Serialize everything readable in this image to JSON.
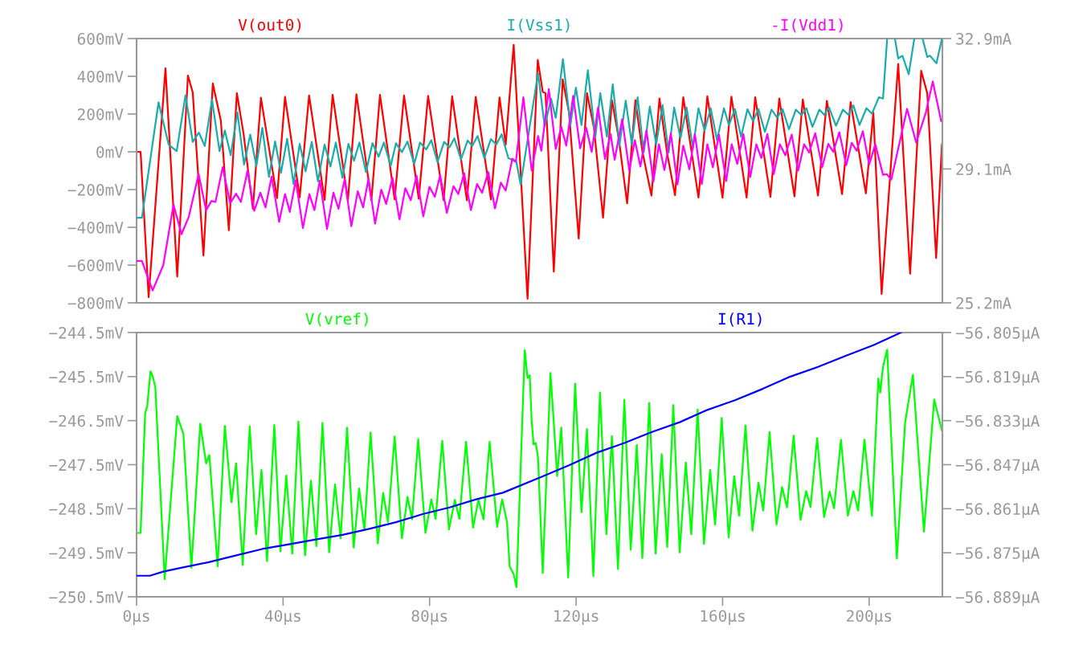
{
  "chart_data": [
    {
      "type": "line",
      "legend": "top",
      "tick_labels": "y",
      "xlim": [
        0,
        220
      ],
      "ylim": [
        -800,
        600
      ],
      "yticks": [
        {
          "value": 600,
          "label": "600mV"
        },
        {
          "value": 400,
          "label": "400mV"
        },
        {
          "value": 200,
          "label": "200mV"
        },
        {
          "value": 0,
          "label": "0mV"
        },
        {
          "value": -200,
          "label": "−200mV"
        },
        {
          "value": -400,
          "label": "−400mV"
        },
        {
          "value": -600,
          "label": "−600mV"
        },
        {
          "value": -800,
          "label": "−800mV"
        }
      ],
      "y2lim": [
        25.2,
        32.9
      ],
      "y2ticks": [
        {
          "value": 25.2,
          "label": "25.2mA"
        },
        {
          "value": 29.1,
          "label": "29.1mA"
        },
        {
          "value": 32.9,
          "label": "32.9mA"
        }
      ],
      "series": [
        {
          "name": "V(out0)",
          "color": "#ff0000",
          "x": [
            0,
            1.1,
            3.29,
            7.89,
            11.1,
            14.02,
            15.33,
            18.26,
            20.81,
            23.0,
            25.19,
            27.38,
            29.21,
            31.76,
            33.95,
            38.34,
            40.53,
            44.54,
            47.1,
            51.33,
            53.52,
            57.69,
            60.02,
            64.11,
            66.45,
            70.46,
            73.02,
            77.04,
            79.59,
            83.83,
            86.16,
            90.18,
            92.59,
            96.75,
            99.09,
            100.77,
            102.96,
            106.74,
            109.53,
            110.89,
            111.65,
            113.91,
            116.33,
            118.07,
            120.71,
            122.98,
            124.86,
            127.36,
            129.77,
            131.66,
            133.93,
            136.19,
            138.08,
            140.57,
            142.76,
            144.88,
            147.0,
            149.26,
            153.41,
            155.83,
            159.98,
            162.4,
            166.55,
            168.9,
            173.05,
            175.47,
            179.62,
            181.89,
            186.04,
            188.46,
            192.61,
            194.95,
            199.11,
            201.15,
            203.41,
            207.94,
            211.19,
            214.21,
            215.87,
            218.29,
            219.88
          ],
          "values": [
            0,
            0,
            -770,
            442,
            -660,
            404,
            315,
            -550,
            362,
            166,
            -416,
            311,
            95,
            -302,
            287,
            -245,
            291,
            -241,
            298,
            -255,
            302,
            -257,
            305,
            -257,
            302,
            -252,
            298,
            -248,
            296,
            -257,
            294,
            -257,
            291,
            -252,
            288,
            38,
            567,
            -778,
            487,
            318,
            311,
            -635,
            384,
            208,
            -459,
            311,
            128,
            -349,
            274,
            69,
            -273,
            274,
            3,
            -232,
            282,
            -12,
            -229,
            289,
            -242,
            294,
            -243,
            292,
            -242,
            289,
            -239,
            282,
            -236,
            277,
            -232,
            270,
            -224,
            263,
            -220,
            208,
            -753,
            465,
            -646,
            429,
            311,
            -562,
            40
          ]
        },
        {
          "name": "I(Vss1)",
          "color": "#1aacac",
          "axis": "y2",
          "x": [
            0,
            1.46,
            5.99,
            8.76,
            10.95,
            13.36,
            15.33,
            17.01,
            18.62,
            20.59,
            22.64,
            24.1,
            25.7,
            27.53,
            29.35,
            31.03,
            32.71,
            34.32,
            36.14,
            37.82,
            39.43,
            41.11,
            42.86,
            44.54,
            46.15,
            47.83,
            49.51,
            51.33,
            52.94,
            54.4,
            56.22,
            57.83,
            59.36,
            60.83,
            62.65,
            64.4,
            66.08,
            67.54,
            69.37,
            70.83,
            72.44,
            73.97,
            75.79,
            77.4,
            79.08,
            80.47,
            82.15,
            83.97,
            85.43,
            86.75,
            88.57,
            90.4,
            91.64,
            93.1,
            94.93,
            96.75,
            98.21,
            99.67,
            101.5,
            103.69,
            104.85,
            109.61,
            111.42,
            113.16,
            114.44,
            116.4,
            118.44,
            119.95,
            121.46,
            123.2,
            125.24,
            126.6,
            128.41,
            130.0,
            131.81,
            133.55,
            135.21,
            136.8,
            138.46,
            140.12,
            141.86,
            143.6,
            145.26,
            146.77,
            148.5,
            150.17,
            151.9,
            153.41,
            155.07,
            156.74,
            158.47,
            160.36,
            161.72,
            163.38,
            165.04,
            166.78,
            168.29,
            169.8,
            171.54,
            173.35,
            174.86,
            176.37,
            178.11,
            180.0,
            181.51,
            182.87,
            184.53,
            186.42,
            187.7,
            189.06,
            190.95,
            192.84,
            194.35,
            195.71,
            197.37,
            199.26,
            200.77,
            202.66,
            203.79,
            204.92,
            206.0,
            207.04,
            207.94,
            209.08,
            210.81,
            212.33,
            213.5,
            214.59,
            215.87,
            216.63,
            218.37,
            219.88
          ],
          "values": [
            27.68,
            27.68,
            31.04,
            29.81,
            29.62,
            31.25,
            29.89,
            30.16,
            29.77,
            31.12,
            29.62,
            30.22,
            29.5,
            30.75,
            29.23,
            30.1,
            29.19,
            30.3,
            28.87,
            29.9,
            28.99,
            29.98,
            28.66,
            29.83,
            29.03,
            29.89,
            28.74,
            29.81,
            29.17,
            29.87,
            28.84,
            29.83,
            29.34,
            29.87,
            29.01,
            29.85,
            29.46,
            29.87,
            29.19,
            29.85,
            29.59,
            29.9,
            29.25,
            29.87,
            29.67,
            29.94,
            29.3,
            29.89,
            29.73,
            29.99,
            29.38,
            29.93,
            29.77,
            30.06,
            29.42,
            29.97,
            29.81,
            30.11,
            29.42,
            29.3,
            28.65,
            31.89,
            30.34,
            31.15,
            30.59,
            32.3,
            30.38,
            31.47,
            30.38,
            31.98,
            30.02,
            31.31,
            30.04,
            31.57,
            29.78,
            31.09,
            29.82,
            31.19,
            29.58,
            30.92,
            29.82,
            30.96,
            29.58,
            30.89,
            30.0,
            30.89,
            29.71,
            30.87,
            30.22,
            30.87,
            29.94,
            30.87,
            30.38,
            30.84,
            30.04,
            30.84,
            30.5,
            30.84,
            30.18,
            30.83,
            30.6,
            30.84,
            30.26,
            30.83,
            30.67,
            30.87,
            30.33,
            30.83,
            30.68,
            30.89,
            30.36,
            30.83,
            30.68,
            30.95,
            30.38,
            30.87,
            30.71,
            31.19,
            31.15,
            32.9,
            null,
            32.9,
            32.32,
            32.4,
            31.86,
            32.9,
            null,
            32.9,
            32.36,
            32.4,
            32.18,
            32.9
          ]
        },
        {
          "name": "-I(Vdd1)",
          "color": "#ff00ff",
          "axis": "y2",
          "x": [
            0,
            1.46,
            4.38,
            7.3,
            10.08,
            12.27,
            14.24,
            16.94,
            18.99,
            20.45,
            21.54,
            23.51,
            25.56,
            27.16,
            28.48,
            30.3,
            32.13,
            33.81,
            35.2,
            36.87,
            38.92,
            40.53,
            41.84,
            43.45,
            45.42,
            47.17,
            48.56,
            50.02,
            51.99,
            53.74,
            55.13,
            56.81,
            58.63,
            60.39,
            61.85,
            63.31,
            65.13,
            66.81,
            68.13,
            69.88,
            71.78,
            73.38,
            74.85,
            76.45,
            78.28,
            79.96,
            81.42,
            82.88,
            84.7,
            86.53,
            87.84,
            89.45,
            91.27,
            92.95,
            94.34,
            96.02,
            97.85,
            99.45,
            100.77,
            102.6,
            103.56,
            105.6,
            107.87,
            109.61,
            110.51,
            112.55,
            114.44,
            115.95,
            117.31,
            119.2,
            121.09,
            122.75,
            124.26,
            126.0,
            127.88,
            129.4,
            130.53,
            132.57,
            134.53,
            136.04,
            137.55,
            139.21,
            141.1,
            142.61,
            144.12,
            145.86,
            147.67,
            149.26,
            150.92,
            152.43,
            154.32,
            155.83,
            157.34,
            159.0,
            160.97,
            162.48,
            163.99,
            165.65,
            167.54,
            169.2,
            170.56,
            172.22,
            173.96,
            175.62,
            177.13,
            178.87,
            180.6,
            182.26,
            183.62,
            185.29,
            187.18,
            188.84,
            190.2,
            191.86,
            193.75,
            195.26,
            196.61,
            198.28,
            200.01,
            201.68,
            203.79,
            204.78,
            206.06,
            210.36,
            212.85,
            215.5,
            217.38,
            219.65
          ],
          "values": [
            26.42,
            26.42,
            25.56,
            26.3,
            28.06,
            27.2,
            27.7,
            28.95,
            27.9,
            28.17,
            28.14,
            29.15,
            28.1,
            28.38,
            28.14,
            29.05,
            27.88,
            28.41,
            27.98,
            28.88,
            27.56,
            28.37,
            27.85,
            28.77,
            27.38,
            28.37,
            27.9,
            28.76,
            27.35,
            28.41,
            27.94,
            28.8,
            27.43,
            28.45,
            27.98,
            28.81,
            27.51,
            28.5,
            28.08,
            28.84,
            27.63,
            28.54,
            28.19,
            28.9,
            27.72,
            28.58,
            28.29,
            28.91,
            27.82,
            28.6,
            28.37,
            28.97,
            27.9,
            28.66,
            28.41,
            29.01,
            27.95,
            28.7,
            28.47,
            29.4,
            29.31,
            31.19,
            29.05,
            30.06,
            29.63,
            31.43,
            29.68,
            30.33,
            29.78,
            31.23,
            29.7,
            30.3,
            29.6,
            30.89,
            29.39,
            30.12,
            29.37,
            30.55,
            29.05,
            29.94,
            29.17,
            30.22,
            28.73,
            29.82,
            29.07,
            30.14,
            28.65,
            29.78,
            29.09,
            30.12,
            28.66,
            29.82,
            29.15,
            30.1,
            28.75,
            29.82,
            29.25,
            30.12,
            28.87,
            29.82,
            29.42,
            30.12,
            28.95,
            29.82,
            29.5,
            30.1,
            29.05,
            29.82,
            29.58,
            30.14,
            29.15,
            29.83,
            29.6,
            30.17,
            29.21,
            29.86,
            29.63,
            30.2,
            29.23,
            29.82,
            28.93,
            28.95,
            28.79,
            30.85,
            29.87,
            30.75,
            31.65,
            30.5
          ]
        }
      ]
    },
    {
      "type": "line",
      "legend": "top",
      "xlim": [
        0,
        220
      ],
      "xticks": [
        {
          "value": 0,
          "label": "0µs"
        },
        {
          "value": 40,
          "label": "40µs"
        },
        {
          "value": 80,
          "label": "80µs"
        },
        {
          "value": 120,
          "label": "120µs"
        },
        {
          "value": 160,
          "label": "160µs"
        },
        {
          "value": 200,
          "label": "200µs"
        }
      ],
      "ylim": [
        -250.5,
        -244.5
      ],
      "yticks": [
        {
          "value": -244.5,
          "label": "−244.5mV"
        },
        {
          "value": -245.5,
          "label": "−245.5mV"
        },
        {
          "value": -246.5,
          "label": "−246.5mV"
        },
        {
          "value": -247.5,
          "label": "−247.5mV"
        },
        {
          "value": -248.5,
          "label": "−248.5mV"
        },
        {
          "value": -249.5,
          "label": "−249.5mV"
        },
        {
          "value": -250.5,
          "label": "−250.5mV"
        }
      ],
      "y2lim": [
        -56.889,
        -56.805
      ],
      "y2ticks": [
        {
          "value": -56.805,
          "label": "−56.805µA"
        },
        {
          "value": -56.819,
          "label": "−56.819µA"
        },
        {
          "value": -56.833,
          "label": "−56.833µA"
        },
        {
          "value": -56.847,
          "label": "−56.847µA"
        },
        {
          "value": -56.861,
          "label": "−56.861µA"
        },
        {
          "value": -56.875,
          "label": "−56.875µA"
        },
        {
          "value": -56.889,
          "label": "−56.889µA"
        }
      ],
      "series": [
        {
          "name": "V(vref)",
          "color": "#00ff00",
          "x": [
            0,
            1.1,
            2.34,
            2.92,
            3.8,
            4.38,
            5.11,
            7.67,
            11.1,
            12.78,
            14.97,
            17.38,
            18.99,
            19.86,
            22.13,
            24.1,
            25.92,
            27.16,
            28.99,
            30.89,
            32.64,
            34.1,
            35.63,
            37.6,
            39.28,
            40.89,
            42.5,
            44.18,
            46.0,
            47.61,
            49.07,
            50.75,
            52.57,
            54.18,
            55.71,
            57.47,
            59.29,
            60.75,
            62.21,
            63.89,
            65.86,
            67.32,
            68.64,
            70.46,
            72.44,
            73.97,
            75.21,
            76.89,
            78.86,
            80.47,
            81.64,
            83.46,
            85.29,
            86.89,
            88.13,
            89.96,
            91.86,
            93.32,
            94.71,
            96.39,
            98.43,
            99.82,
            101.13,
            101.86,
            102.96,
            103.72,
            105.98,
            106.74,
            107.34,
            107.87,
            108.4,
            109.0,
            109.61,
            110.89,
            113.01,
            114.14,
            114.82,
            115.95,
            117.84,
            119.73,
            121.46,
            122.97,
            124.71,
            126.52,
            128.26,
            129.77,
            131.43,
            133.17,
            134.91,
            136.57,
            138.08,
            139.97,
            141.71,
            143.37,
            144.88,
            146.54,
            148.28,
            149.94,
            151.45,
            153.19,
            154.92,
            156.59,
            157.95,
            159.76,
            161.65,
            163.16,
            164.52,
            166.25,
            168.14,
            169.8,
            171.09,
            172.82,
            174.71,
            176.22,
            177.58,
            179.39,
            181.28,
            182.79,
            184.0,
            185.81,
            187.7,
            189.21,
            190.42,
            192.31,
            194.2,
            195.71,
            196.99,
            198.73,
            200.77,
            202.51,
            203.03,
            203.79,
            204.92,
            207.57,
            209.83,
            211.95,
            214.97,
            217.76,
            219.88
          ],
          "values": [
            -249.05,
            -249.05,
            -246.34,
            -246.16,
            -245.38,
            -245.49,
            -245.73,
            -250.1,
            -246.4,
            -246.8,
            -249.84,
            -246.57,
            -247.47,
            -247.28,
            -249.81,
            -246.62,
            -248.35,
            -247.47,
            -249.78,
            -246.63,
            -249.08,
            -247.62,
            -249.69,
            -246.6,
            -249.47,
            -247.75,
            -249.52,
            -246.52,
            -249.56,
            -247.86,
            -249.35,
            -246.55,
            -249.49,
            -247.95,
            -249.17,
            -246.66,
            -249.38,
            -248.04,
            -248.99,
            -246.77,
            -249.29,
            -248.14,
            -248.8,
            -246.86,
            -249.17,
            -248.23,
            -248.74,
            -246.92,
            -249.05,
            -248.29,
            -248.73,
            -246.96,
            -248.97,
            -248.3,
            -248.73,
            -246.98,
            -248.93,
            -248.3,
            -248.74,
            -246.98,
            -248.91,
            -248.29,
            -248.8,
            -249.81,
            -249.99,
            -250.28,
            -244.9,
            -245.53,
            -245.47,
            -246.51,
            -247.04,
            -247.01,
            -247.35,
            -249.96,
            -245.42,
            -246.85,
            -247.76,
            -246.66,
            -250.06,
            -245.66,
            -248.58,
            -246.69,
            -250.03,
            -245.86,
            -249.08,
            -246.85,
            -249.87,
            -246.03,
            -249.43,
            -247.05,
            -249.62,
            -246.1,
            -249.52,
            -247.26,
            -249.37,
            -246.15,
            -249.49,
            -247.45,
            -249.08,
            -246.25,
            -249.3,
            -247.62,
            -248.86,
            -246.44,
            -249.15,
            -247.76,
            -248.66,
            -246.61,
            -249.0,
            -247.91,
            -248.54,
            -246.76,
            -248.86,
            -248.01,
            -248.47,
            -246.84,
            -248.75,
            -248.1,
            -248.46,
            -246.9,
            -248.69,
            -248.11,
            -248.49,
            -246.93,
            -248.66,
            -248.1,
            -248.54,
            -246.93,
            -248.66,
            -245.54,
            -245.86,
            -245.28,
            -244.89,
            -249.63,
            -246.54,
            -245.46,
            -249.02,
            -246.02,
            -246.73
          ]
        },
        {
          "name": "I(R1)",
          "color": "#0000ff",
          "axis": "y2",
          "x": [
            0,
            3.65,
            7.3,
            12.41,
            19.72,
            27.02,
            34.32,
            41.62,
            48.92,
            56.22,
            63.53,
            70.83,
            78.13,
            85.43,
            92.73,
            100.04,
            110.51,
            118.07,
            125.62,
            133.17,
            140.72,
            148.28,
            155.83,
            163.38,
            170.94,
            178.49,
            186.04,
            193.6,
            201.15,
            208.7
          ],
          "values": [
            -56.8823,
            -56.8823,
            -56.881,
            -56.8797,
            -56.878,
            -56.8759,
            -56.8738,
            -56.8723,
            -56.8708,
            -56.8693,
            -56.8674,
            -56.8653,
            -56.8627,
            -56.8606,
            -56.858,
            -56.8559,
            -56.8509,
            -56.8472,
            -56.8432,
            -56.8401,
            -56.8366,
            -56.8335,
            -56.8296,
            -56.8265,
            -56.8229,
            -56.819,
            -56.8159,
            -56.8124,
            -56.809,
            -56.805
          ]
        }
      ]
    }
  ]
}
